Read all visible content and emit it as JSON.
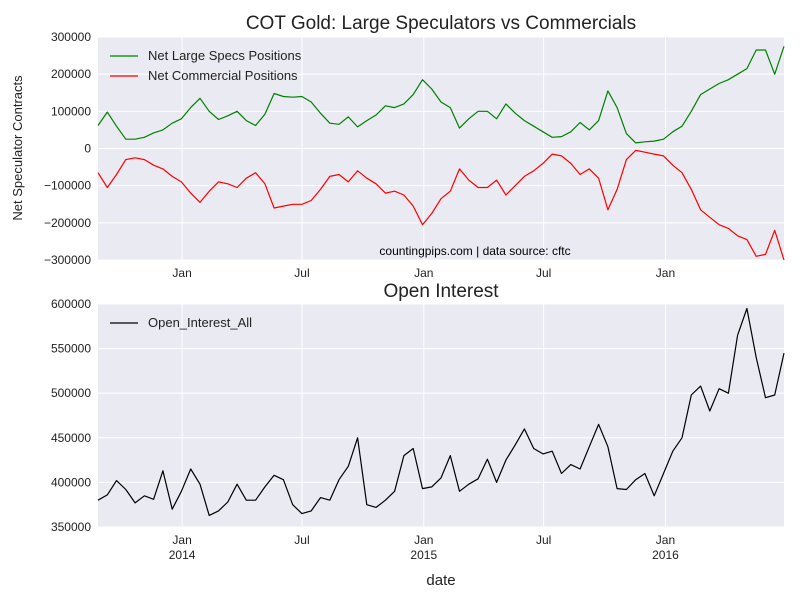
{
  "chart_data": [
    {
      "type": "line",
      "title": "COT Gold: Large Speculators vs Commercials",
      "ylabel": "Net Speculator Contracts",
      "xlabel": "",
      "ylim": [
        -300000,
        300000
      ],
      "yticks": [
        -300000,
        -200000,
        -100000,
        0,
        100000,
        200000,
        300000
      ],
      "ytick_labels": [
        "−300000",
        "−200000",
        "−100000",
        "0",
        "100000",
        "200000",
        "300000"
      ],
      "x_range": [
        "2013-08-27",
        "2016-06-28"
      ],
      "xticks": [
        "2014-01-01",
        "2014-07-01",
        "2015-01-01",
        "2015-07-01",
        "2016-01-01"
      ],
      "xtick_labels": [
        "Jan",
        "Jul",
        "Jan",
        "Jul",
        "Jan"
      ],
      "grid": true,
      "legend": "upper left",
      "annotation": "countingpips.com | data source: cftc",
      "x": [
        "2013-08-27",
        "2013-09-10",
        "2013-09-24",
        "2013-10-08",
        "2013-10-22",
        "2013-11-05",
        "2013-11-19",
        "2013-12-03",
        "2013-12-17",
        "2013-12-31",
        "2014-01-14",
        "2014-01-28",
        "2014-02-11",
        "2014-02-25",
        "2014-03-11",
        "2014-03-25",
        "2014-04-08",
        "2014-04-22",
        "2014-05-06",
        "2014-05-20",
        "2014-06-03",
        "2014-06-17",
        "2014-07-01",
        "2014-07-15",
        "2014-07-29",
        "2014-08-12",
        "2014-08-26",
        "2014-09-09",
        "2014-09-23",
        "2014-10-07",
        "2014-10-21",
        "2014-11-04",
        "2014-11-18",
        "2014-12-02",
        "2014-12-16",
        "2014-12-30",
        "2015-01-13",
        "2015-01-27",
        "2015-02-10",
        "2015-02-24",
        "2015-03-10",
        "2015-03-24",
        "2015-04-07",
        "2015-04-21",
        "2015-05-05",
        "2015-05-19",
        "2015-06-02",
        "2015-06-16",
        "2015-06-30",
        "2015-07-14",
        "2015-07-28",
        "2015-08-11",
        "2015-08-25",
        "2015-09-08",
        "2015-09-22",
        "2015-10-06",
        "2015-10-20",
        "2015-11-03",
        "2015-11-17",
        "2015-12-01",
        "2015-12-15",
        "2015-12-29",
        "2016-01-12",
        "2016-01-26",
        "2016-02-09",
        "2016-02-23",
        "2016-03-08",
        "2016-03-22",
        "2016-04-05",
        "2016-04-19",
        "2016-05-03",
        "2016-05-17",
        "2016-05-31",
        "2016-06-14",
        "2016-06-28"
      ],
      "series": [
        {
          "name": "Net Large Specs Positions",
          "color": "#008000",
          "values": [
            62000,
            98000,
            60000,
            25000,
            25000,
            30000,
            42000,
            50000,
            68000,
            80000,
            110000,
            135000,
            100000,
            78000,
            88000,
            100000,
            75000,
            62000,
            92000,
            148000,
            140000,
            138000,
            140000,
            125000,
            95000,
            68000,
            65000,
            85000,
            58000,
            75000,
            90000,
            115000,
            110000,
            120000,
            145000,
            185000,
            160000,
            125000,
            110000,
            55000,
            80000,
            100000,
            100000,
            80000,
            120000,
            95000,
            75000,
            60000,
            45000,
            30000,
            32000,
            45000,
            70000,
            50000,
            75000,
            155000,
            110000,
            40000,
            15000,
            18000,
            20000,
            25000,
            45000,
            60000,
            100000,
            145000,
            160000,
            175000,
            185000,
            200000,
            215000,
            265000,
            265000,
            200000,
            275000
          ]
        },
        {
          "name": "Net Commercial Positions",
          "color": "#ff0000",
          "values": [
            -65000,
            -105000,
            -70000,
            -30000,
            -25000,
            -30000,
            -45000,
            -55000,
            -75000,
            -90000,
            -120000,
            -145000,
            -115000,
            -90000,
            -95000,
            -105000,
            -80000,
            -65000,
            -95000,
            -160000,
            -155000,
            -150000,
            -150000,
            -140000,
            -110000,
            -75000,
            -70000,
            -90000,
            -60000,
            -80000,
            -95000,
            -120000,
            -115000,
            -125000,
            -155000,
            -205000,
            -175000,
            -135000,
            -115000,
            -55000,
            -85000,
            -105000,
            -105000,
            -85000,
            -125000,
            -100000,
            -75000,
            -60000,
            -40000,
            -15000,
            -20000,
            -40000,
            -70000,
            -55000,
            -80000,
            -165000,
            -110000,
            -30000,
            -5000,
            -10000,
            -15000,
            -20000,
            -45000,
            -65000,
            -110000,
            -165000,
            -185000,
            -205000,
            -215000,
            -235000,
            -245000,
            -290000,
            -285000,
            -220000,
            -300000
          ]
        }
      ]
    },
    {
      "type": "line",
      "title": "Open Interest",
      "ylabel": "",
      "xlabel": "date",
      "ylim": [
        350000,
        600000
      ],
      "yticks": [
        350000,
        400000,
        450000,
        500000,
        550000,
        600000
      ],
      "ytick_labels": [
        "350000",
        "400000",
        "450000",
        "500000",
        "550000",
        "600000"
      ],
      "x_range": [
        "2013-08-27",
        "2016-06-28"
      ],
      "xticks": [
        "2014-01-01",
        "2014-07-01",
        "2015-01-01",
        "2015-07-01",
        "2016-01-01"
      ],
      "xtick_labels": [
        "Jan\n2014",
        "Jul",
        "Jan\n2015",
        "Jul",
        "Jan\n2016"
      ],
      "grid": true,
      "legend": "upper left",
      "x": [
        "2013-08-27",
        "2013-09-10",
        "2013-09-24",
        "2013-10-08",
        "2013-10-22",
        "2013-11-05",
        "2013-11-19",
        "2013-12-03",
        "2013-12-17",
        "2013-12-31",
        "2014-01-14",
        "2014-01-28",
        "2014-02-11",
        "2014-02-25",
        "2014-03-11",
        "2014-03-25",
        "2014-04-08",
        "2014-04-22",
        "2014-05-06",
        "2014-05-20",
        "2014-06-03",
        "2014-06-17",
        "2014-07-01",
        "2014-07-15",
        "2014-07-29",
        "2014-08-12",
        "2014-08-26",
        "2014-09-09",
        "2014-09-23",
        "2014-10-07",
        "2014-10-21",
        "2014-11-04",
        "2014-11-18",
        "2014-12-02",
        "2014-12-16",
        "2014-12-30",
        "2015-01-13",
        "2015-01-27",
        "2015-02-10",
        "2015-02-24",
        "2015-03-10",
        "2015-03-24",
        "2015-04-07",
        "2015-04-21",
        "2015-05-05",
        "2015-05-19",
        "2015-06-02",
        "2015-06-16",
        "2015-06-30",
        "2015-07-14",
        "2015-07-28",
        "2015-08-11",
        "2015-08-25",
        "2015-09-08",
        "2015-09-22",
        "2015-10-06",
        "2015-10-20",
        "2015-11-03",
        "2015-11-17",
        "2015-12-01",
        "2015-12-15",
        "2015-12-29",
        "2016-01-12",
        "2016-01-26",
        "2016-02-09",
        "2016-02-23",
        "2016-03-08",
        "2016-03-22",
        "2016-04-05",
        "2016-04-19",
        "2016-05-03",
        "2016-05-17",
        "2016-05-31",
        "2016-06-14",
        "2016-06-28"
      ],
      "series": [
        {
          "name": "Open_Interest_All",
          "color": "#000000",
          "values": [
            380000,
            386000,
            402000,
            392000,
            377000,
            385000,
            381000,
            413000,
            370000,
            390000,
            415000,
            398000,
            363000,
            368000,
            378000,
            398000,
            380000,
            380000,
            395000,
            408000,
            403000,
            375000,
            365000,
            368000,
            383000,
            380000,
            403000,
            418000,
            450000,
            375000,
            372000,
            380000,
            390000,
            430000,
            438000,
            393000,
            395000,
            405000,
            430000,
            390000,
            398000,
            404000,
            426000,
            400000,
            425000,
            442000,
            460000,
            438000,
            432000,
            435000,
            410000,
            420000,
            415000,
            440000,
            465000,
            440000,
            393000,
            392000,
            403000,
            410000,
            385000,
            410000,
            435000,
            450000,
            498000,
            508000,
            480000,
            505000,
            500000,
            565000,
            595000,
            540000,
            495000,
            498000,
            545000
          ]
        }
      ]
    }
  ]
}
